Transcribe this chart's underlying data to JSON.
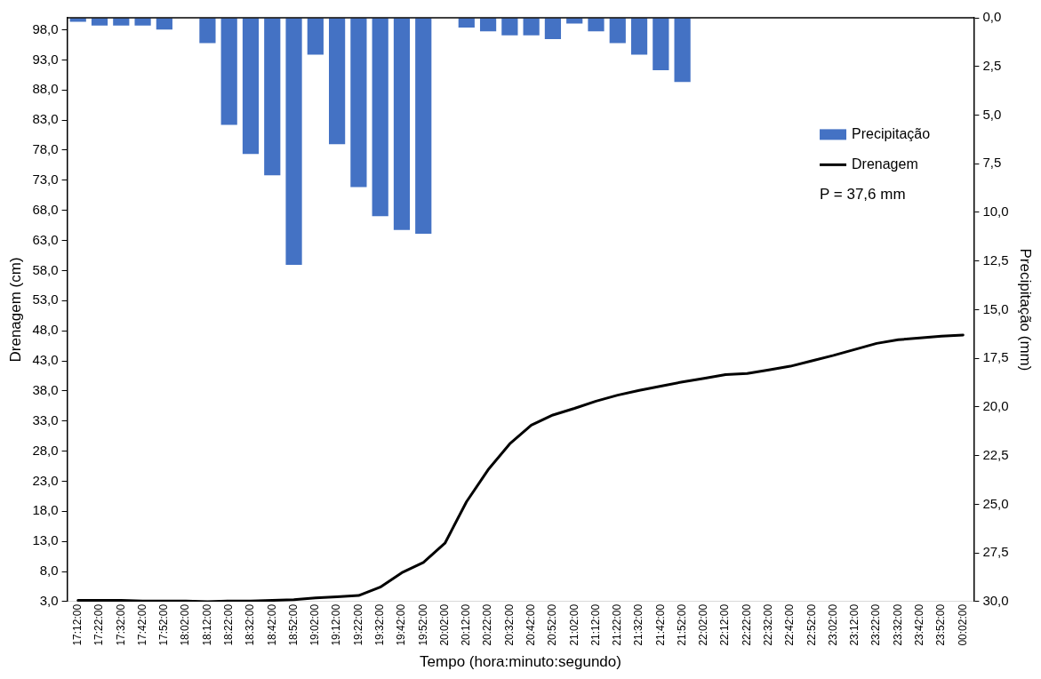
{
  "chart_data": {
    "type": "bar",
    "xlabel": "Tempo (hora:minuto:segundo)",
    "ylabel": "Drenagem (cm)",
    "y2label": "Precipitação (mm)",
    "categories": [
      "17:12:00",
      "17:22:00",
      "17:32:00",
      "17:42:00",
      "17:52:00",
      "18:02:00",
      "18:12:00",
      "18:22:00",
      "18:32:00",
      "18:42:00",
      "18:52:00",
      "19:02:00",
      "19:12:00",
      "19:22:00",
      "19:32:00",
      "19:42:00",
      "19:52:00",
      "20:02:00",
      "20:12:00",
      "20:22:00",
      "20:32:00",
      "20:42:00",
      "20:52:00",
      "21:02:00",
      "21:12:00",
      "21:22:00",
      "21:32:00",
      "21:42:00",
      "21:52:00",
      "22:02:00",
      "22:12:00",
      "22:22:00",
      "22:32:00",
      "22:42:00",
      "22:52:00",
      "23:02:00",
      "23:12:00",
      "23:22:00",
      "23:32:00",
      "23:42:00",
      "23:52:00",
      "00:02:00"
    ],
    "series": [
      {
        "name": "Precipitação",
        "axis": "y2",
        "color": "#4472c4",
        "values": [
          0.2,
          0.4,
          0.4,
          0.4,
          0.6,
          0,
          1.3,
          5.5,
          7.0,
          8.1,
          12.7,
          1.9,
          6.5,
          8.7,
          10.2,
          10.9,
          11.1,
          0,
          0.5,
          0.7,
          0.9,
          0.9,
          1.1,
          0.3,
          0.7,
          1.3,
          1.9,
          2.7,
          3.3,
          0,
          0,
          0,
          0,
          0,
          0,
          0,
          0,
          0,
          0,
          0,
          0,
          0
        ]
      },
      {
        "name": "Drenagem",
        "type": "line",
        "color": "#000000",
        "values": [
          3.2,
          3.2,
          3.2,
          3.1,
          3.1,
          3.1,
          3.0,
          3.1,
          3.1,
          3.2,
          3.3,
          3.6,
          3.8,
          4.0,
          5.4,
          7.8,
          9.5,
          12.7,
          19.6,
          24.9,
          29.2,
          32.3,
          34.0,
          35.1,
          36.3,
          37.3,
          38.1,
          38.8,
          39.5,
          40.1,
          40.7,
          40.9,
          41.5,
          42.1,
          43.0,
          43.9,
          44.9,
          45.9,
          46.5,
          46.8,
          47.1,
          47.3
        ]
      }
    ],
    "ylim": [
      3,
      100
    ],
    "yticks": [
      {
        "value": 3,
        "label": "3,0"
      },
      {
        "value": 8,
        "label": "8,0"
      },
      {
        "value": 13,
        "label": "13,0"
      },
      {
        "value": 18,
        "label": "18,0"
      },
      {
        "value": 23,
        "label": "23,0"
      },
      {
        "value": 28,
        "label": "28,0"
      },
      {
        "value": 33,
        "label": "33,0"
      },
      {
        "value": 38,
        "label": "38,0"
      },
      {
        "value": 43,
        "label": "43,0"
      },
      {
        "value": 48,
        "label": "48,0"
      },
      {
        "value": 53,
        "label": "53,0"
      },
      {
        "value": 58,
        "label": "58,0"
      },
      {
        "value": 63,
        "label": "63,0"
      },
      {
        "value": 68,
        "label": "68,0"
      },
      {
        "value": 73,
        "label": "73,0"
      },
      {
        "value": 78,
        "label": "78,0"
      },
      {
        "value": 83,
        "label": "83,0"
      },
      {
        "value": 88,
        "label": "88,0"
      },
      {
        "value": 93,
        "label": "93,0"
      },
      {
        "value": 98,
        "label": "98,0"
      }
    ],
    "y2lim": [
      30,
      0
    ],
    "y2ticks": [
      {
        "value": 0,
        "label": "0,0"
      },
      {
        "value": 2.5,
        "label": "2,5"
      },
      {
        "value": 5,
        "label": "5,0"
      },
      {
        "value": 7.5,
        "label": "7,5"
      },
      {
        "value": 10,
        "label": "10,0"
      },
      {
        "value": 12.5,
        "label": "12,5"
      },
      {
        "value": 15,
        "label": "15,0"
      },
      {
        "value": 17.5,
        "label": "17,5"
      },
      {
        "value": 20,
        "label": "20,0"
      },
      {
        "value": 22.5,
        "label": "22,5"
      },
      {
        "value": 25,
        "label": "25,0"
      },
      {
        "value": 27.5,
        "label": "27,5"
      },
      {
        "value": 30,
        "label": "30,0"
      }
    ],
    "annotations": [
      "P = 37,6 mm"
    ],
    "legend": "top right",
    "grid": false,
    "marker": "none",
    "line_style": "solid"
  }
}
